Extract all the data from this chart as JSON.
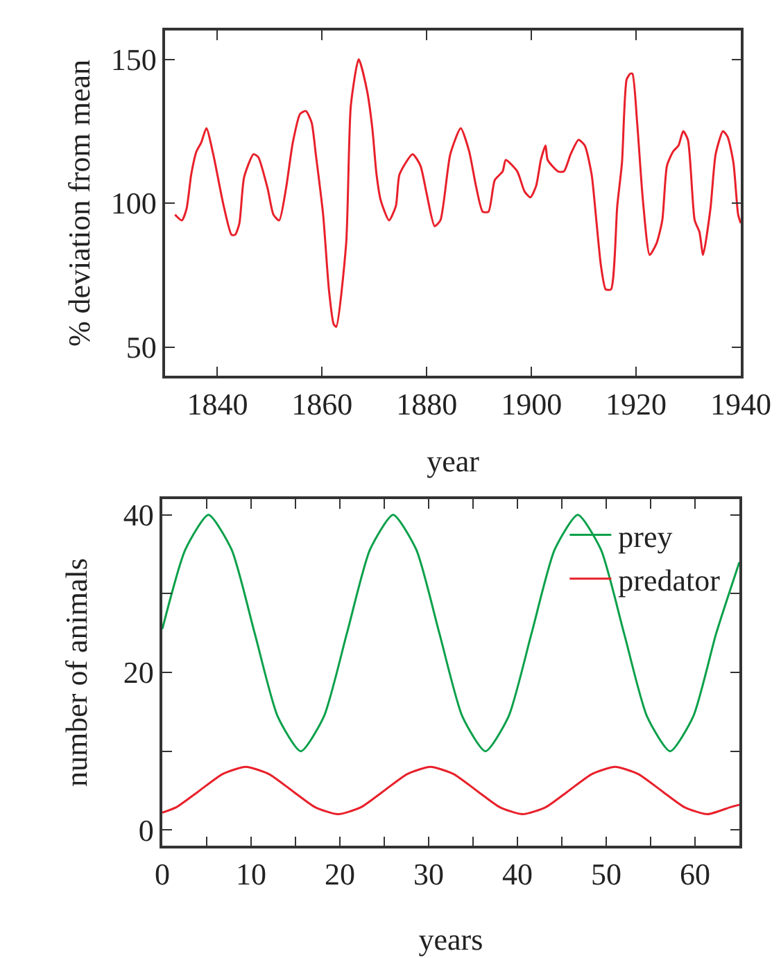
{
  "chart_data": [
    {
      "type": "line",
      "xlabel": "year",
      "ylabel": "% deviation from mean",
      "x": [
        1831.9,
        1833.2,
        1834.1,
        1835,
        1836,
        1836.9,
        1837.9,
        1839.2,
        1841.2,
        1842.7,
        1843.4,
        1844.2,
        1845.1,
        1846.9,
        1847.8,
        1849.6,
        1850.7,
        1851.8,
        1853.1,
        1854.4,
        1855.8,
        1856.9,
        1858,
        1858.8,
        1860.2,
        1861.3,
        1862.2,
        1862.7,
        1864.6,
        1865.5,
        1867,
        1868.6,
        1869.6,
        1870.4,
        1871.2,
        1872.8,
        1874.1,
        1874.8,
        1877.3,
        1878.8,
        1879.9,
        1881.5,
        1882.6,
        1884.5,
        1886.5,
        1888.1,
        1889.4,
        1890.7,
        1891.8,
        1893,
        1894.5,
        1895.1,
        1897.3,
        1898.7,
        1899.8,
        1900.9,
        1901.8,
        1902.7,
        1903.1,
        1905.1,
        1906.2,
        1907.5,
        1909,
        1910.2,
        1911.5,
        1912.4,
        1913.3,
        1914.2,
        1915.2,
        1916.4,
        1917.3,
        1918.2,
        1918.9,
        1919.3,
        1920.2,
        1921.3,
        1922.6,
        1923.9,
        1925,
        1925.9,
        1927.1,
        1928.1,
        1929,
        1929.9,
        1931.2,
        1932.1,
        1932.8,
        1934.2,
        1935.2,
        1936.6,
        1937.5,
        1938.6,
        1939.5,
        1940
      ],
      "series": [
        {
          "color": "#e8202a",
          "values": [
            96,
            94,
            98,
            110,
            118,
            121,
            126,
            117,
            99,
            89,
            89,
            93,
            109,
            117,
            116,
            105,
            96,
            94,
            105,
            121,
            131,
            132,
            128,
            117,
            96,
            70,
            58,
            57,
            86,
            134,
            150,
            139,
            126,
            110,
            101,
            94,
            99,
            110,
            117,
            113,
            104,
            92,
            94,
            117,
            126,
            118,
            106,
            97,
            97,
            108,
            111,
            115,
            111,
            104,
            102,
            106,
            115,
            120,
            115,
            111,
            111,
            117,
            122,
            120,
            110,
            94,
            78,
            70,
            70,
            99,
            114,
            143,
            145,
            145,
            128,
            101,
            82,
            86,
            94,
            113,
            118,
            120,
            125,
            122,
            94,
            90,
            82,
            98,
            117,
            125,
            123,
            114,
            96,
            93
          ]
        }
      ],
      "xlim": [
        1830,
        1940
      ],
      "xticks": [
        1840,
        1860,
        1880,
        1900,
        1920,
        1940
      ],
      "ylim": [
        40,
        160
      ],
      "yticks": [
        50,
        100,
        150
      ],
      "grid": false,
      "legend": false
    },
    {
      "type": "line",
      "xlabel": "years",
      "ylabel": "number of animals",
      "series": [
        {
          "name": "prey",
          "color": "#0aa04a",
          "x": [
            0,
            2.6,
            5.2,
            7.8,
            10.4,
            13,
            15.6,
            18.2,
            20.8,
            23.4,
            26,
            28.6,
            31.2,
            33.8,
            36.4,
            39,
            41.6,
            44.2,
            46.8,
            49.4,
            52,
            54.6,
            57.2,
            59.8,
            62.4,
            65
          ],
          "values": [
            25.5,
            35.6,
            40,
            35.6,
            25,
            14.4,
            10,
            14.4,
            25,
            35.6,
            40,
            35.6,
            25,
            14.4,
            10,
            14.4,
            25,
            35.6,
            40,
            35.6,
            25,
            14.4,
            10,
            14.4,
            25,
            34
          ]
        },
        {
          "name": "predator",
          "color": "#e8202a",
          "x": [
            0,
            1.6,
            4.2,
            6.8,
            9.4,
            12,
            14.6,
            17.2,
            19.8,
            22.4,
            25,
            27.6,
            30.2,
            32.8,
            35.4,
            38,
            40.6,
            43.2,
            45.8,
            48.4,
            51,
            53.6,
            56.2,
            58.8,
            61.4,
            64,
            65
          ],
          "values": [
            2.2,
            2.9,
            5,
            7.1,
            8,
            7.1,
            5,
            2.9,
            2,
            2.9,
            5,
            7.1,
            8,
            7.1,
            5,
            2.9,
            2,
            2.9,
            5,
            7.1,
            8,
            7.1,
            5,
            2.9,
            2,
            2.9,
            3.2
          ]
        }
      ],
      "xlim": [
        0,
        65
      ],
      "xticks": [
        0,
        {
          "value": 5,
          "label": null
        },
        10,
        {
          "value": 15,
          "label": null
        },
        20,
        {
          "value": 25,
          "label": null
        },
        30,
        {
          "value": 35,
          "label": null
        },
        40,
        {
          "value": 45,
          "label": null
        },
        50,
        {
          "value": 55,
          "label": null
        },
        60
      ],
      "ylim": [
        -2,
        42
      ],
      "yticks": [
        0,
        {
          "value": 10,
          "label": null
        },
        20,
        {
          "value": 30,
          "label": null
        },
        40
      ],
      "grid": false,
      "legend": "top right"
    }
  ]
}
